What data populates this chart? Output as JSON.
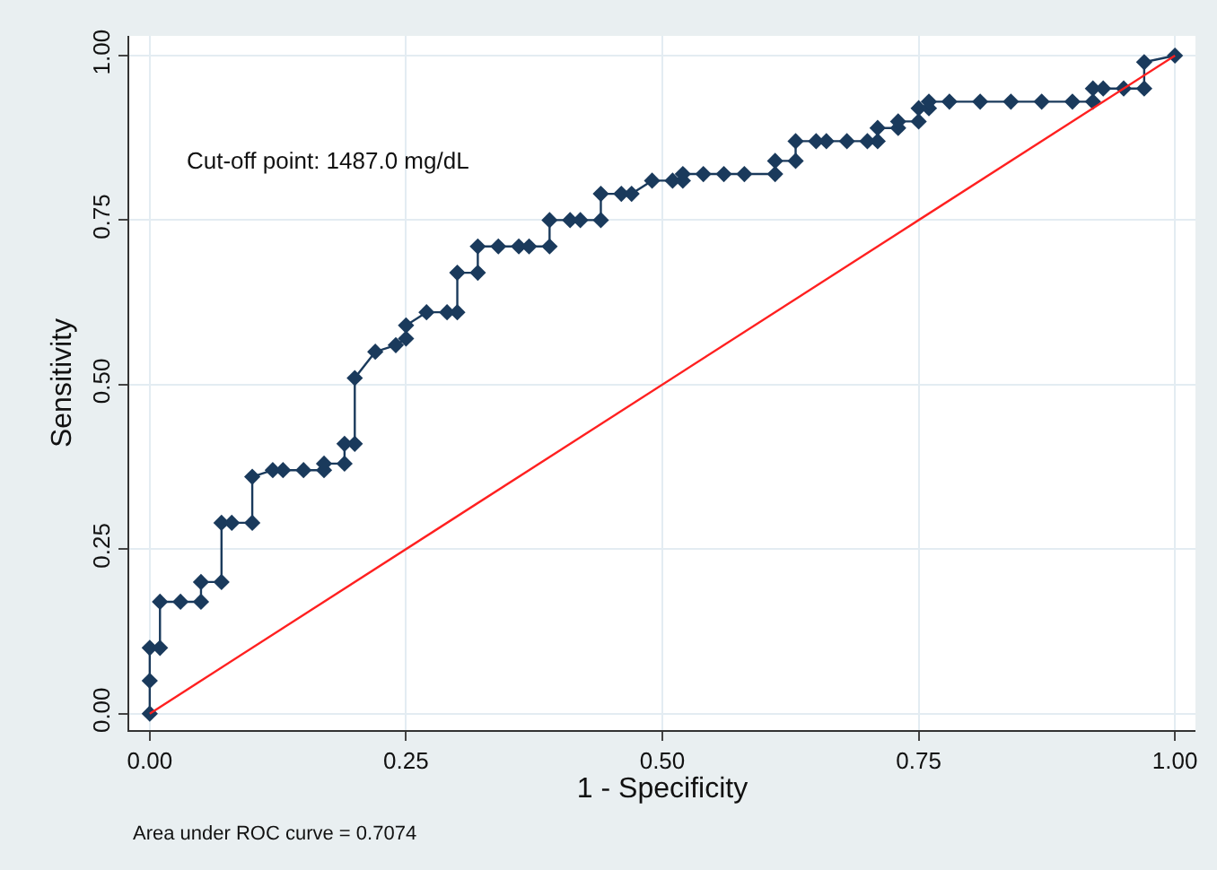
{
  "chart_data": {
    "type": "line",
    "xlabel": "1 - Specificity",
    "ylabel": "Sensitivity",
    "annotations": [
      "Cut-off point: 1487.0 mg/dL",
      "Area under ROC curve = 0.7074"
    ],
    "xlim": [
      -0.02,
      1.02
    ],
    "ylim": [
      -0.025,
      1.03
    ],
    "xticks": [
      {
        "value": 0,
        "label": "0.00"
      },
      {
        "value": 0.25,
        "label": "0.25"
      },
      {
        "value": 0.5,
        "label": "0.50"
      },
      {
        "value": 0.75,
        "label": "0.75"
      },
      {
        "value": 1,
        "label": "1.00"
      }
    ],
    "yticks": [
      {
        "value": 0,
        "label": "0.00"
      },
      {
        "value": 0.25,
        "label": "0.25"
      },
      {
        "value": 0.5,
        "label": "0.50"
      },
      {
        "value": 0.75,
        "label": "0.75"
      },
      {
        "value": 1,
        "label": "1.00"
      }
    ],
    "grid": true,
    "series": [
      {
        "color": "#1a3a5c",
        "marker": "diamond",
        "line_style": "solid",
        "x": [
          0,
          0,
          0,
          0.01,
          0.01,
          0.03,
          0.05,
          0.05,
          0.07,
          0.07,
          0.08,
          0.1,
          0.1,
          0.12,
          0.13,
          0.15,
          0.17,
          0.17,
          0.19,
          0.19,
          0.2,
          0.2,
          0.22,
          0.24,
          0.25,
          0.25,
          0.27,
          0.29,
          0.3,
          0.3,
          0.32,
          0.32,
          0.34,
          0.36,
          0.37,
          0.39,
          0.39,
          0.41,
          0.42,
          0.44,
          0.44,
          0.46,
          0.47,
          0.49,
          0.51,
          0.52,
          0.52,
          0.54,
          0.56,
          0.58,
          0.61,
          0.61,
          0.63,
          0.63,
          0.65,
          0.66,
          0.68,
          0.7,
          0.71,
          0.71,
          0.73,
          0.73,
          0.75,
          0.75,
          0.76,
          0.76,
          0.78,
          0.81,
          0.84,
          0.87,
          0.9,
          0.92,
          0.92,
          0.93,
          0.95,
          0.97,
          0.97,
          1.0
        ],
        "values": [
          0,
          0.05,
          0.1,
          0.1,
          0.17,
          0.17,
          0.17,
          0.2,
          0.2,
          0.29,
          0.29,
          0.29,
          0.36,
          0.37,
          0.37,
          0.37,
          0.37,
          0.38,
          0.38,
          0.41,
          0.41,
          0.51,
          0.55,
          0.56,
          0.57,
          0.59,
          0.61,
          0.61,
          0.61,
          0.67,
          0.67,
          0.71,
          0.71,
          0.71,
          0.71,
          0.71,
          0.75,
          0.75,
          0.75,
          0.75,
          0.79,
          0.79,
          0.79,
          0.81,
          0.81,
          0.81,
          0.82,
          0.82,
          0.82,
          0.82,
          0.82,
          0.84,
          0.84,
          0.87,
          0.87,
          0.87,
          0.87,
          0.87,
          0.87,
          0.89,
          0.89,
          0.9,
          0.9,
          0.92,
          0.92,
          0.93,
          0.93,
          0.93,
          0.93,
          0.93,
          0.93,
          0.93,
          0.95,
          0.95,
          0.95,
          0.95,
          0.99,
          1.0
        ]
      },
      {
        "color": "#ff2020",
        "marker": "none",
        "line_style": "solid",
        "x": [
          0,
          1
        ],
        "values": [
          0,
          1
        ]
      }
    ]
  }
}
